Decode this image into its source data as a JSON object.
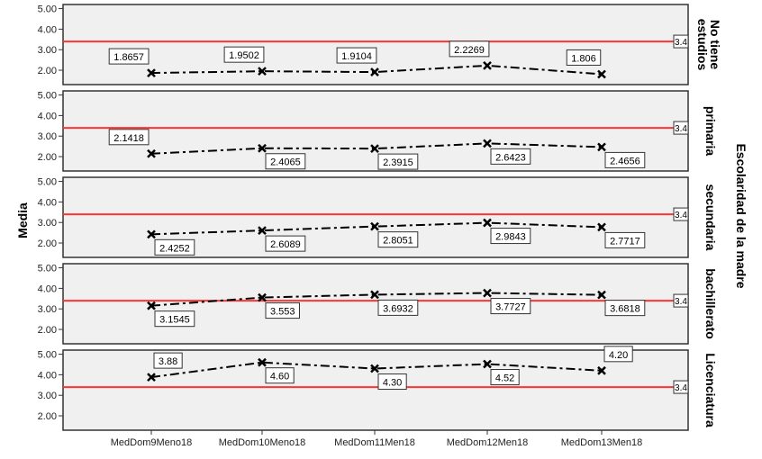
{
  "chart_data": {
    "type": "line",
    "ylabel": "Media",
    "panel_axis_title": "Escolaridad de la madre",
    "categories": [
      "MedDom9Meno18",
      "MedDom10Meno18",
      "MedDom11Men18",
      "MedDom12Men18",
      "MedDom13Men18"
    ],
    "yticks": [
      "2.00",
      "3.00",
      "4.00",
      "5.00"
    ],
    "ytick_values": [
      2,
      3,
      4,
      5
    ],
    "ylim": [
      1.3,
      5.2
    ],
    "reference_line": {
      "value": 3.4,
      "label": "3.4",
      "color": "#ff3333"
    },
    "line_style": "dash-dot",
    "marker": "x",
    "panels": [
      {
        "name": "No tiene estudios",
        "name_lines": [
          "No tiene",
          "estudios"
        ],
        "values": [
          1.8657,
          1.9502,
          1.9104,
          2.2269,
          1.806
        ],
        "labels": [
          "1.8657",
          "1.9502",
          "1.9104",
          "2.2269",
          "1.806"
        ],
        "label_side": [
          "above",
          "above",
          "above",
          "above",
          "above"
        ]
      },
      {
        "name": "primaria",
        "name_lines": [
          "primaria"
        ],
        "values": [
          2.1418,
          2.4065,
          2.3915,
          2.6423,
          2.4656
        ],
        "labels": [
          "2.1418",
          "2.4065",
          "2.3915",
          "2.6423",
          "2.4656"
        ],
        "label_side": [
          "above",
          "below",
          "below",
          "below",
          "below"
        ]
      },
      {
        "name": "secundaria",
        "name_lines": [
          "secundaria"
        ],
        "values": [
          2.4252,
          2.6089,
          2.8051,
          2.9843,
          2.7717
        ],
        "labels": [
          "2.4252",
          "2.6089",
          "2.8051",
          "2.9843",
          "2.7717"
        ],
        "label_side": [
          "below",
          "below",
          "below",
          "below",
          "below"
        ]
      },
      {
        "name": "bachillerato",
        "name_lines": [
          "bachillerato"
        ],
        "values": [
          3.1545,
          3.553,
          3.6932,
          3.7727,
          3.6818
        ],
        "labels": [
          "3.1545",
          "3.553",
          "3.6932",
          "3.7727",
          "3.6818"
        ],
        "label_side": [
          "below",
          "below",
          "below",
          "below",
          "below"
        ]
      },
      {
        "name": "Licenciatura",
        "name_lines": [
          "Licenciatura"
        ],
        "values": [
          3.88,
          4.6,
          4.3,
          4.52,
          4.2
        ],
        "labels": [
          "3.88",
          "4.60",
          "4.30",
          "4.52",
          "4.20"
        ],
        "label_side": [
          "above",
          "below",
          "below",
          "below",
          "above"
        ]
      }
    ]
  }
}
